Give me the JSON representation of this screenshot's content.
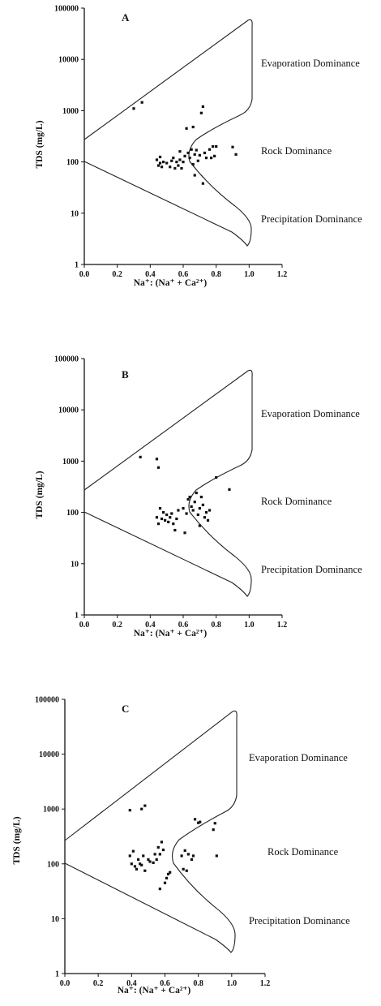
{
  "chart_data": [
    {
      "type": "scatter",
      "panel_label": "A",
      "xlabel": "Na⁺: (Na⁺ + Ca²⁺)",
      "ylabel": "TDS (mg/L)",
      "xlim": [
        0,
        1.2
      ],
      "ylim": [
        1,
        100000
      ],
      "ylog": true,
      "xticks": [
        "0.0",
        "0.2",
        "0.4",
        "0.6",
        "0.8",
        "1.0",
        "1.2"
      ],
      "yticks": [
        "1",
        "10",
        "100",
        "1000",
        "10000",
        "100000"
      ],
      "regions": [
        "Evaporation Dominance",
        "Rock Dominance",
        "Precipitation Dominance"
      ],
      "points": [
        [
          0.3,
          1100
        ],
        [
          0.35,
          1450
        ],
        [
          0.44,
          110
        ],
        [
          0.45,
          85
        ],
        [
          0.46,
          95
        ],
        [
          0.46,
          125
        ],
        [
          0.47,
          80
        ],
        [
          0.48,
          100
        ],
        [
          0.5,
          95
        ],
        [
          0.52,
          80
        ],
        [
          0.53,
          105
        ],
        [
          0.54,
          120
        ],
        [
          0.55,
          75
        ],
        [
          0.56,
          100
        ],
        [
          0.57,
          85
        ],
        [
          0.58,
          110
        ],
        [
          0.58,
          160
        ],
        [
          0.59,
          75
        ],
        [
          0.6,
          100
        ],
        [
          0.61,
          130
        ],
        [
          0.62,
          450
        ],
        [
          0.63,
          150
        ],
        [
          0.64,
          120
        ],
        [
          0.65,
          175
        ],
        [
          0.66,
          90
        ],
        [
          0.66,
          480
        ],
        [
          0.67,
          140
        ],
        [
          0.67,
          55
        ],
        [
          0.68,
          170
        ],
        [
          0.69,
          105
        ],
        [
          0.7,
          135
        ],
        [
          0.71,
          900
        ],
        [
          0.72,
          1200
        ],
        [
          0.72,
          38
        ],
        [
          0.73,
          150
        ],
        [
          0.74,
          120
        ],
        [
          0.76,
          175
        ],
        [
          0.77,
          120
        ],
        [
          0.78,
          200
        ],
        [
          0.79,
          130
        ],
        [
          0.8,
          200
        ],
        [
          0.9,
          195
        ],
        [
          0.92,
          140
        ]
      ]
    },
    {
      "type": "scatter",
      "panel_label": "B",
      "xlabel": "Na⁺: (Na⁺ + Ca²⁺)",
      "ylabel": "TDS (mg/L)",
      "xlim": [
        0,
        1.2
      ],
      "ylim": [
        1,
        100000
      ],
      "ylog": true,
      "xticks": [
        "0.0",
        "0.2",
        "0.4",
        "0.6",
        "0.8",
        "1.0",
        "1.2"
      ],
      "yticks": [
        "1",
        "10",
        "100",
        "1000",
        "10000",
        "100000"
      ],
      "regions": [
        "Evaporation Dominance",
        "Rock Dominance",
        "Precipitation Dominance"
      ],
      "points": [
        [
          0.34,
          1200
        ],
        [
          0.44,
          1100
        ],
        [
          0.45,
          750
        ],
        [
          0.44,
          80
        ],
        [
          0.45,
          60
        ],
        [
          0.46,
          120
        ],
        [
          0.47,
          75
        ],
        [
          0.48,
          100
        ],
        [
          0.49,
          70
        ],
        [
          0.5,
          90
        ],
        [
          0.51,
          65
        ],
        [
          0.52,
          80
        ],
        [
          0.53,
          95
        ],
        [
          0.54,
          60
        ],
        [
          0.55,
          45
        ],
        [
          0.56,
          75
        ],
        [
          0.57,
          110
        ],
        [
          0.6,
          120
        ],
        [
          0.61,
          40
        ],
        [
          0.62,
          95
        ],
        [
          0.63,
          180
        ],
        [
          0.64,
          200
        ],
        [
          0.65,
          130
        ],
        [
          0.66,
          110
        ],
        [
          0.67,
          160
        ],
        [
          0.68,
          240
        ],
        [
          0.69,
          90
        ],
        [
          0.7,
          120
        ],
        [
          0.7,
          55
        ],
        [
          0.71,
          200
        ],
        [
          0.72,
          140
        ],
        [
          0.73,
          80
        ],
        [
          0.74,
          100
        ],
        [
          0.75,
          70
        ],
        [
          0.76,
          110
        ],
        [
          0.8,
          480
        ],
        [
          0.88,
          280
        ]
      ]
    },
    {
      "type": "scatter",
      "panel_label": "C",
      "xlabel": "Na⁺: (Na⁺ + Ca²⁺)",
      "ylabel": "TDS (mg/L)",
      "xlim": [
        0,
        1.2
      ],
      "ylim": [
        1,
        100000
      ],
      "ylog": true,
      "xticks": [
        "0.0",
        "0.2",
        "0.4",
        "0.6",
        "0.8",
        "1.0",
        "1.2"
      ],
      "yticks": [
        "1",
        "10",
        "100",
        "1000",
        "10000",
        "100000"
      ],
      "regions": [
        "Evaporation Dominance",
        "Rock Dominance",
        "Precipitation Dominance"
      ],
      "points": [
        [
          0.39,
          950
        ],
        [
          0.46,
          1000
        ],
        [
          0.48,
          1150
        ],
        [
          0.39,
          140
        ],
        [
          0.4,
          100
        ],
        [
          0.41,
          170
        ],
        [
          0.42,
          90
        ],
        [
          0.43,
          80
        ],
        [
          0.44,
          120
        ],
        [
          0.45,
          100
        ],
        [
          0.46,
          95
        ],
        [
          0.47,
          140
        ],
        [
          0.48,
          75
        ],
        [
          0.5,
          120
        ],
        [
          0.51,
          110
        ],
        [
          0.53,
          105
        ],
        [
          0.54,
          150
        ],
        [
          0.55,
          120
        ],
        [
          0.56,
          200
        ],
        [
          0.57,
          150
        ],
        [
          0.57,
          35
        ],
        [
          0.58,
          250
        ],
        [
          0.59,
          180
        ],
        [
          0.6,
          45
        ],
        [
          0.61,
          55
        ],
        [
          0.62,
          65
        ],
        [
          0.63,
          70
        ],
        [
          0.7,
          140
        ],
        [
          0.71,
          80
        ],
        [
          0.72,
          175
        ],
        [
          0.73,
          75
        ],
        [
          0.74,
          150
        ],
        [
          0.76,
          120
        ],
        [
          0.77,
          140
        ],
        [
          0.78,
          650
        ],
        [
          0.8,
          560
        ],
        [
          0.81,
          580
        ],
        [
          0.89,
          420
        ],
        [
          0.9,
          550
        ],
        [
          0.91,
          140
        ]
      ]
    }
  ]
}
